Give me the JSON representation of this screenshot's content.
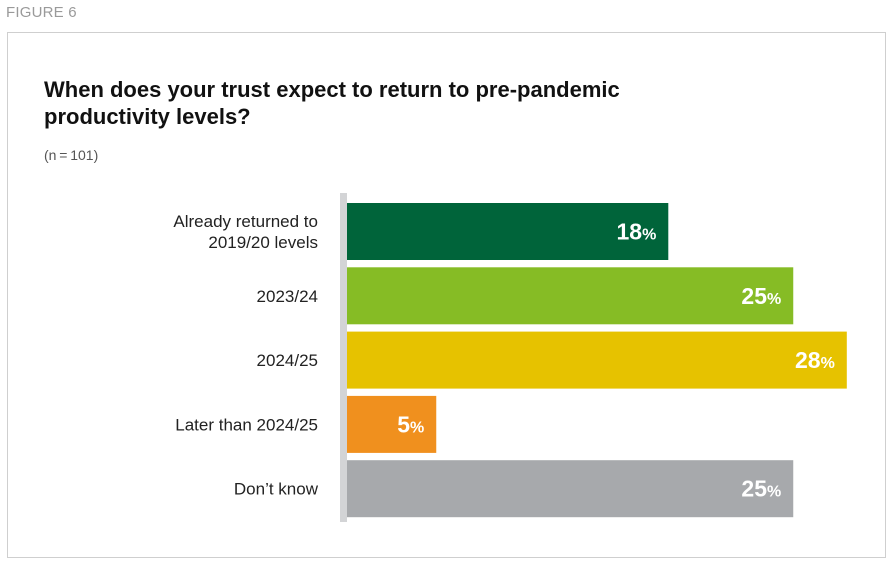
{
  "figure_label": "FIGURE 6",
  "chart_data": {
    "type": "bar",
    "orientation": "horizontal",
    "title": "When does your trust expect to return to pre-pandemic productivity levels?",
    "subtitle": "(n = 101)",
    "categories": [
      [
        "Already returned to",
        "2019/20 levels"
      ],
      [
        "2023/24"
      ],
      [
        "2024/25"
      ],
      [
        "Later than 2024/25"
      ],
      [
        "Don’t know"
      ]
    ],
    "values": [
      18,
      25,
      28,
      5,
      25
    ],
    "unit": "%",
    "colors": [
      "#00643a",
      "#86bc25",
      "#e6c200",
      "#f0901e",
      "#a7a9ac"
    ],
    "axis_color": "#d3d4d6",
    "grid": false,
    "legend": "none"
  }
}
